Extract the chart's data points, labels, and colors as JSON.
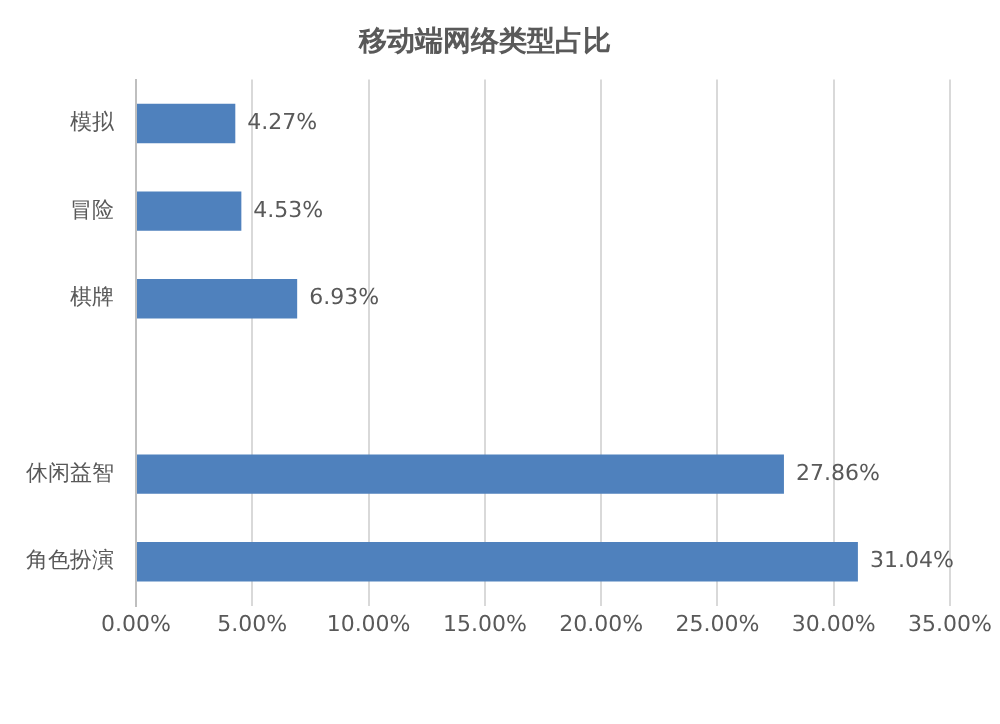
{
  "chart_data": {
    "type": "bar",
    "orientation": "horizontal",
    "title": "移动端网络类型占比",
    "categories": [
      "模拟",
      "冒险",
      "棋牌",
      null,
      "休闲益智",
      "角色扮演"
    ],
    "values": [
      4.27,
      4.53,
      6.93,
      null,
      27.86,
      31.04
    ],
    "value_labels": [
      "4.27%",
      "4.53%",
      "6.93%",
      null,
      "27.86%",
      "31.04%"
    ],
    "color": "#4f81bd",
    "xlim": [
      0,
      35
    ],
    "xticks": [
      {
        "value": 0,
        "label": "0.00%"
      },
      {
        "value": 5,
        "label": "5.00%"
      },
      {
        "value": 10,
        "label": "10.00%"
      },
      {
        "value": 15,
        "label": "15.00%"
      },
      {
        "value": 20,
        "label": "20.00%"
      },
      {
        "value": 25,
        "label": "25.00%"
      },
      {
        "value": 30,
        "label": "30.00%"
      },
      {
        "value": 35,
        "label": "35.00%"
      }
    ],
    "grid": "x",
    "legend": false
  }
}
